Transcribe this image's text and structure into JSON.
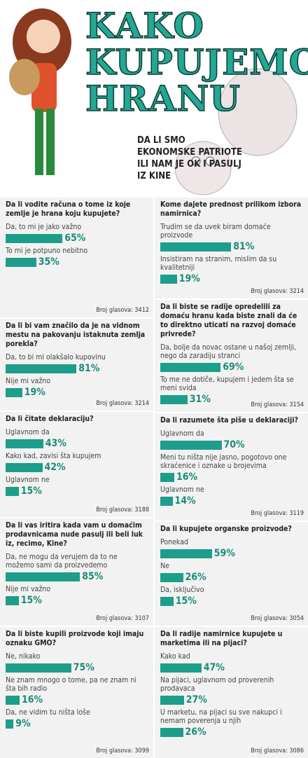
{
  "header": {
    "title_lines": [
      "KAKO",
      "KUPUJEMO",
      "HRANU"
    ],
    "subtitle": "DA LI SMO EKONOMSKE PATRIOTE ILI NAM JE OK I PASULJ IZ KINE"
  },
  "columns": [
    [
      {
        "question": "Da li vodite računa o tome iz koje zemlje je hrana koju kupujete?",
        "options": [
          {
            "label": "Da, to mi je jako važno",
            "value": 65,
            "value_label": "65%"
          },
          {
            "label": "To mi je potpuno nebitno",
            "value": 35,
            "value_label": "35%"
          }
        ],
        "votes": "Broj glasova: 3412"
      },
      {
        "question": "Da li bi vam značilo da je na vidnom mestu na pakovanju istaknuta zemlja porekla?",
        "options": [
          {
            "label": "Da, to bi mi olakšalo kupovinu",
            "value": 81,
            "value_label": "81%"
          },
          {
            "label": "Nije mi važno",
            "value": 19,
            "value_label": "19%"
          }
        ],
        "votes": "Broj glasova: 3214"
      },
      {
        "question": "Da li čitate deklaraciju?",
        "options": [
          {
            "label": "Uglavnom da",
            "value": 43,
            "value_label": "43%"
          },
          {
            "label": "Kako kad, zavisi šta kupujem",
            "value": 42,
            "value_label": "42%"
          },
          {
            "label": "Uglavnom ne",
            "value": 15,
            "value_label": "15%"
          }
        ],
        "votes": "Broj glasova: 3188"
      },
      {
        "question": "Da li vas iritira kada vam u domaćim prodavnicama nude pasulj ili beli luk iz, recimo, Kine?",
        "options": [
          {
            "label": "Da, ne mogu da verujem da to ne možemo sami da proizvedemo",
            "value": 85,
            "value_label": "85%"
          },
          {
            "label": "Nije mi važno",
            "value": 15,
            "value_label": "15%"
          }
        ],
        "votes": "Broj glasova: 3107"
      },
      {
        "question": "Da li biste kupili proizvode koji imaju oznaku GMO?",
        "options": [
          {
            "label": "Ne, nikako",
            "value": 75,
            "value_label": "75%"
          },
          {
            "label": "Ne znam mnogo o tome, pa ne znam ni šta bih radio",
            "value": 16,
            "value_label": "16%"
          },
          {
            "label": "Da, ne vidim tu ništa loše",
            "value": 9,
            "value_label": "9%"
          }
        ],
        "votes": "Broj glasova: 3099"
      }
    ],
    [
      {
        "question": "Kome dajete prednost prilikom izbora namirnica?",
        "options": [
          {
            "label": "Trudim se da uvek biram domaće proizvode",
            "value": 81,
            "value_label": "81%"
          },
          {
            "label": "Insistiram na stranim, mislim da su kvalitetniji",
            "value": 19,
            "value_label": "19%"
          }
        ],
        "votes": "Broj glasova: 3214"
      },
      {
        "question": "Da li biste se radije opredelili za domaću hranu kada biste znali da će to direktno uticati na razvoj domaće privrede?",
        "options": [
          {
            "label": "Da, bolje da novac ostane u našoj zemlji, nego da zaradiju stranci",
            "value": 69,
            "value_label": "69%"
          },
          {
            "label": "To me ne dotiče, kupujem i jedem šta se meni svida",
            "value": 31,
            "value_label": "31%"
          }
        ],
        "votes": "Broj glasova: 3154"
      },
      {
        "question": "Da li razumete šta piše u deklaraciji?",
        "options": [
          {
            "label": "Uglavnom da",
            "value": 70,
            "value_label": "70%"
          },
          {
            "label": "Meni tu ništa nije jasno, pogotovo one skraćenice i oznake u brojevima",
            "value": 16,
            "value_label": "16%"
          },
          {
            "label": "Uglavnom ne",
            "value": 14,
            "value_label": "14%"
          }
        ],
        "votes": "Broj glasova: 3119"
      },
      {
        "question": "Da li kupujete organske proizvode?",
        "options": [
          {
            "label": "Ponekad",
            "value": 59,
            "value_label": "59%"
          },
          {
            "label": "Ne",
            "value": 26,
            "value_label": "26%"
          },
          {
            "label": "Da, isključivo",
            "value": 15,
            "value_label": "15%"
          }
        ],
        "votes": "Broj glasova: 3054"
      },
      {
        "question": "Da li radije namirnice kupujete u marketima ili na pijaci?",
        "options": [
          {
            "label": "Kako kad",
            "value": 47,
            "value_label": "47%"
          },
          {
            "label": "Na pijaci, uglavnom od proverenih prodavaca",
            "value": 27,
            "value_label": "27%"
          },
          {
            "label": "U marketu, na pijaci su sve nakupci i nemam poverenja u njih",
            "value": 26,
            "value_label": "26%"
          }
        ],
        "votes": "Broj glasova: 3086"
      }
    ]
  ]
}
